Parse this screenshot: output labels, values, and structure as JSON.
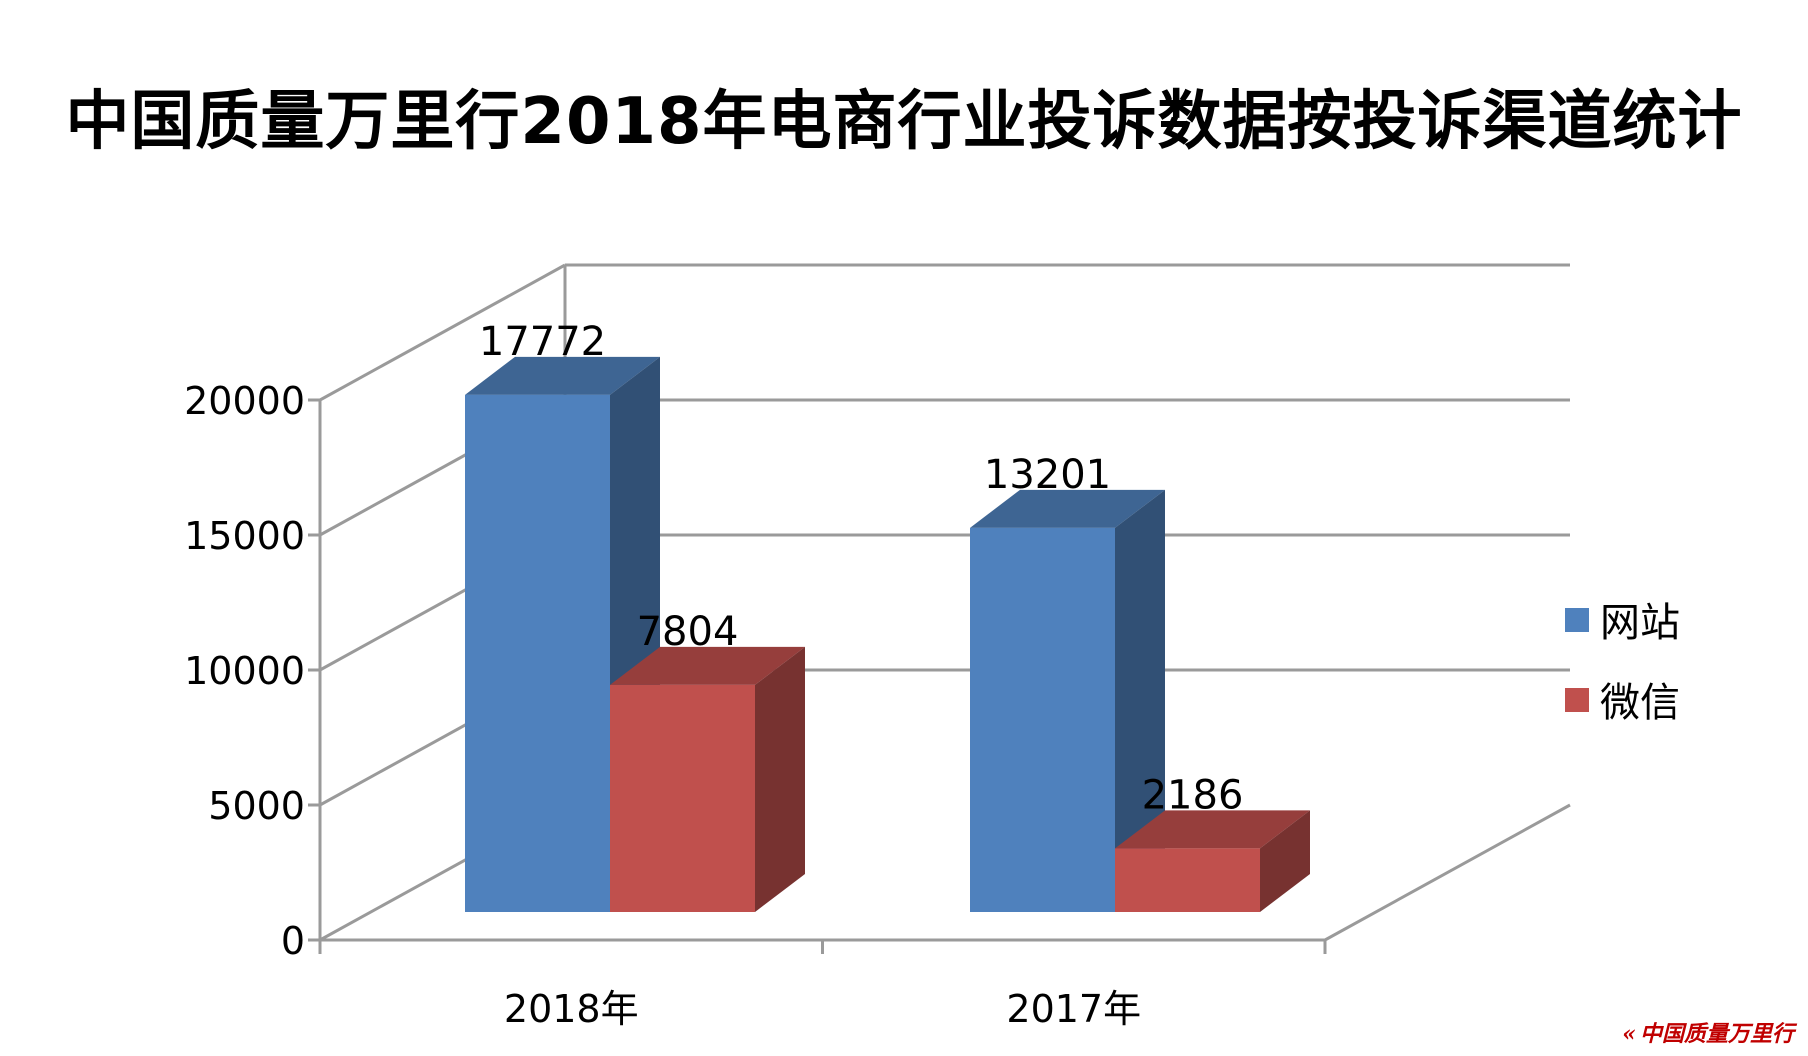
{
  "chart_data": {
    "type": "bar",
    "title": "中国质量万里行2018年电商行业投诉数据按投诉渠道统计",
    "categories": [
      "2018年",
      "2017年"
    ],
    "series": [
      {
        "name": "网站",
        "values": [
          17772,
          13201
        ],
        "color": "#4F81BD"
      },
      {
        "name": "微信",
        "values": [
          7804,
          2186
        ],
        "color": "#C0504D"
      }
    ],
    "ylim": [
      0,
      20000
    ],
    "yticks": [
      0,
      5000,
      10000,
      15000,
      20000
    ],
    "grid": true,
    "legend": "right",
    "three_d": true
  },
  "watermark": {
    "text": "中国质量万里行",
    "color": "#c00000"
  }
}
